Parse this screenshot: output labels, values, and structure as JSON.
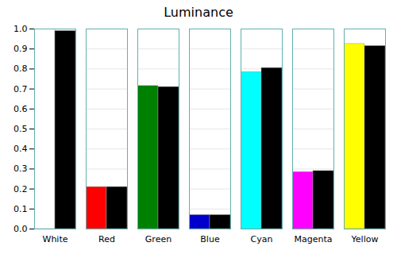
{
  "chart_data": {
    "type": "bar",
    "title": "Luminance",
    "categories": [
      "White",
      "Red",
      "Green",
      "Blue",
      "Cyan",
      "Magenta",
      "Yellow"
    ],
    "series": [
      {
        "colors": [
          "#ffffff",
          "#ff0000",
          "#008000",
          "#0000cc",
          "#00ffff",
          "#ff00ff",
          "#ffff00"
        ],
        "values": [
          1.0,
          0.21,
          0.715,
          0.07,
          0.785,
          0.285,
          0.925
        ]
      },
      {
        "color": "#000000",
        "values": [
          0.99,
          0.21,
          0.71,
          0.07,
          0.805,
          0.29,
          0.915
        ]
      }
    ],
    "ylim": [
      0.0,
      1.0
    ],
    "yticks": [
      {
        "value": 0.0,
        "label": "0.0"
      },
      0.1,
      0.2,
      0.3,
      0.4,
      0.5,
      0.6,
      0.7,
      0.8,
      0.9,
      {
        "value": 1.0,
        "label": "1.0"
      }
    ],
    "grid": true
  }
}
